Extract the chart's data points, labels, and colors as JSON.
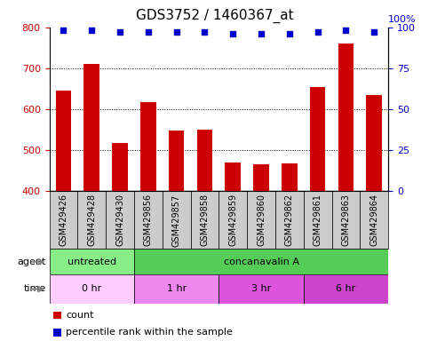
{
  "title": "GDS3752 / 1460367_at",
  "samples": [
    "GSM429426",
    "GSM429428",
    "GSM429430",
    "GSM429856",
    "GSM429857",
    "GSM429858",
    "GSM429859",
    "GSM429860",
    "GSM429862",
    "GSM429861",
    "GSM429863",
    "GSM429864"
  ],
  "bar_values": [
    645,
    710,
    518,
    617,
    547,
    550,
    470,
    465,
    468,
    655,
    760,
    635
  ],
  "percentile_values": [
    98,
    98,
    97,
    97,
    97,
    97,
    96,
    96,
    96,
    97,
    98,
    97
  ],
  "bar_color": "#cc0000",
  "dot_color": "#0000cc",
  "ylim_left": [
    400,
    800
  ],
  "ylim_right": [
    0,
    100
  ],
  "yticks_left": [
    400,
    500,
    600,
    700,
    800
  ],
  "yticks_right": [
    0,
    25,
    50,
    75,
    100
  ],
  "agent_groups": [
    {
      "label": "untreated",
      "start": 0,
      "end": 3,
      "color": "#88ee88"
    },
    {
      "label": "concanavalin A",
      "start": 3,
      "end": 12,
      "color": "#55cc55"
    }
  ],
  "time_groups": [
    {
      "label": "0 hr",
      "start": 0,
      "end": 3,
      "color": "#ffccff"
    },
    {
      "label": "1 hr",
      "start": 3,
      "end": 6,
      "color": "#ee88ee"
    },
    {
      "label": "3 hr",
      "start": 6,
      "end": 9,
      "color": "#dd55dd"
    },
    {
      "label": "6 hr",
      "start": 9,
      "end": 12,
      "color": "#cc44cc"
    }
  ],
  "bar_color_red": "#cc0000",
  "dot_color_blue": "#0000cc",
  "ylabel_left_color": "#cc0000",
  "ylabel_right_color": "#0000cc",
  "grid_color": "#000000",
  "background_color": "#ffffff",
  "tick_label_bg": "#cccccc",
  "title_fontsize": 11,
  "tick_fontsize": 8,
  "label_fontsize": 8,
  "legend_fontsize": 8
}
